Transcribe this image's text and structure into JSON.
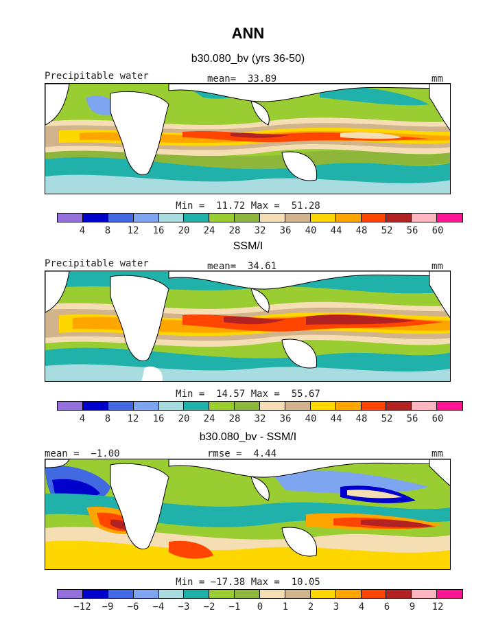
{
  "title": "ANN",
  "panels": [
    {
      "title": "b30.080_bv (yrs 36-50)",
      "left_label": "Precipitable water",
      "center_label": "mean=  33.89",
      "right_label": "mm",
      "minmax": "Min =  11.72 Max =  51.28",
      "colorbar": {
        "colors": [
          "#9370DB",
          "#0000CD",
          "#4169E1",
          "#7EA6F0",
          "#A8DCE0",
          "#20B2AA",
          "#9ACD32",
          "#8DB63A",
          "#F5DEB3",
          "#D2B48C",
          "#FFD700",
          "#FFA500",
          "#FF4500",
          "#B22222",
          "#FFB6C1",
          "#FF1493"
        ],
        "ticks": [
          "4",
          "8",
          "12",
          "16",
          "20",
          "24",
          "28",
          "32",
          "36",
          "40",
          "44",
          "48",
          "52",
          "56",
          "60"
        ]
      }
    },
    {
      "title": "SSM/I",
      "left_label": "Precipitable water",
      "center_label": "mean=  34.61",
      "right_label": "mm",
      "minmax": "Min =  14.57 Max =  55.67",
      "colorbar": {
        "colors": [
          "#9370DB",
          "#0000CD",
          "#4169E1",
          "#7EA6F0",
          "#A8DCE0",
          "#20B2AA",
          "#9ACD32",
          "#8DB63A",
          "#F5DEB3",
          "#D2B48C",
          "#FFD700",
          "#FFA500",
          "#FF4500",
          "#B22222",
          "#FFB6C1",
          "#FF1493"
        ],
        "ticks": [
          "4",
          "8",
          "12",
          "16",
          "20",
          "24",
          "28",
          "32",
          "36",
          "40",
          "44",
          "48",
          "52",
          "56",
          "60"
        ]
      }
    },
    {
      "title": "b30.080_bv - SSM/I",
      "left_label": "mean =  −1.00",
      "center_label": "rmse =  4.44",
      "right_label": "mm",
      "minmax": "Min = −17.38 Max =  10.05",
      "colorbar": {
        "colors": [
          "#9370DB",
          "#0000CD",
          "#4169E1",
          "#7EA6F0",
          "#A8DCE0",
          "#20B2AA",
          "#9ACD32",
          "#8DB63A",
          "#F5DEB3",
          "#D2B48C",
          "#FFD700",
          "#FFA500",
          "#FF4500",
          "#B22222",
          "#FFB6C1",
          "#FF1493"
        ],
        "ticks": [
          "−12",
          "−9",
          "−6",
          "−4",
          "−3",
          "−2",
          "−1",
          "0",
          "1",
          "2",
          "3",
          "4",
          "6",
          "9",
          "12"
        ]
      }
    }
  ]
}
